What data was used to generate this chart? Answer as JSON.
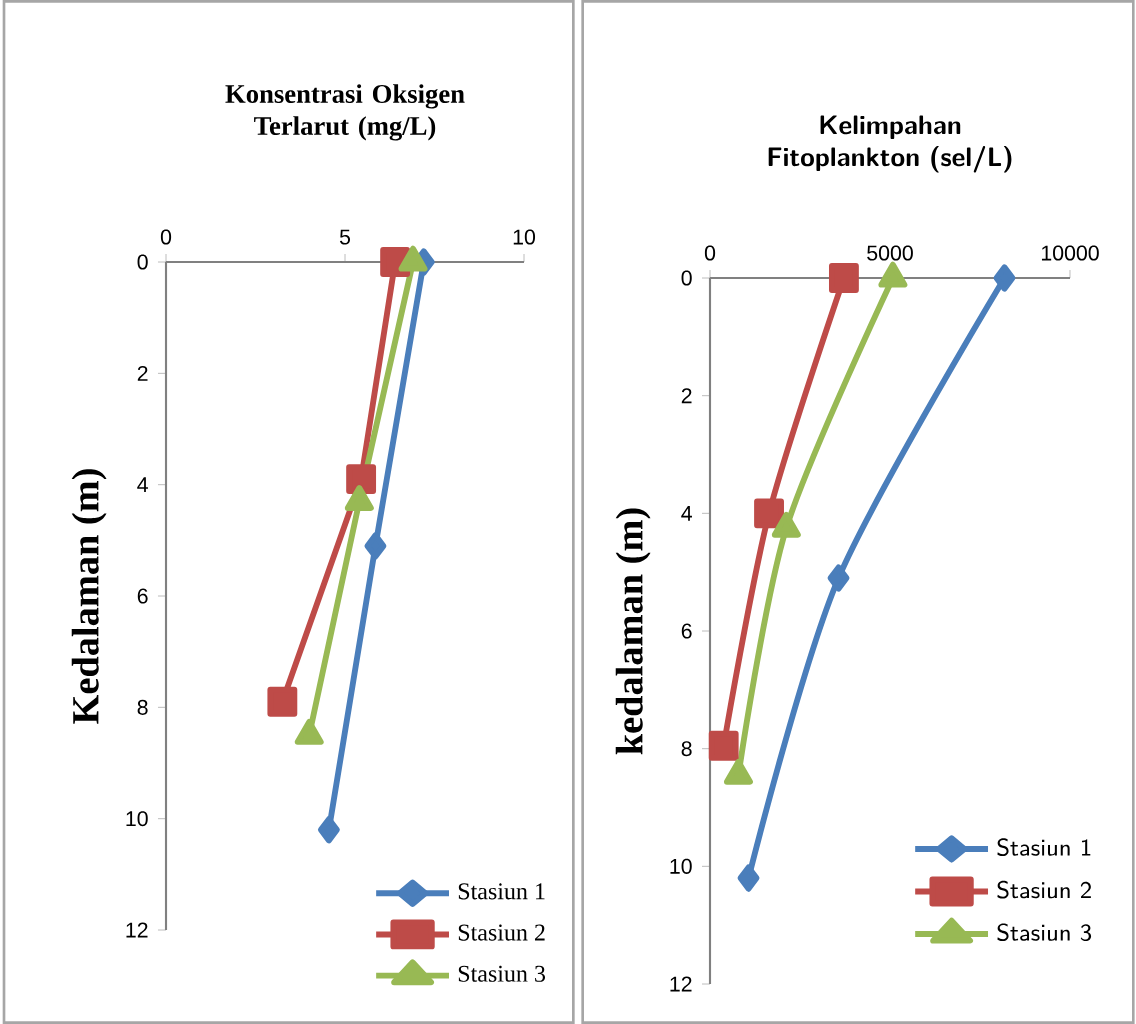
{
  "chart_data": [
    {
      "type": "line",
      "title": "Konsentrasi Oksigen Terlarut (mg/L)",
      "ylabel": "Kedalaman (m)",
      "xlim": [
        0,
        10
      ],
      "xticks": [
        0,
        5,
        10
      ],
      "ylim": [
        12,
        0
      ],
      "yticks": [
        0,
        2,
        4,
        6,
        8,
        10,
        12
      ],
      "legend": "bottom right",
      "grid": false,
      "series": [
        {
          "name": "Stasiun 1",
          "color": "#4a7ebb",
          "marker": "diamond",
          "x": [
            7.2,
            5.85,
            4.55
          ],
          "values": [
            0,
            5.1,
            10.2
          ]
        },
        {
          "name": "Stasiun 2",
          "color": "#be4b48",
          "marker": "square",
          "x": [
            6.4,
            5.45,
            3.25
          ],
          "values": [
            0,
            3.9,
            7.9
          ]
        },
        {
          "name": "Stasiun 3",
          "color": "#98b954",
          "marker": "triangle",
          "x": [
            6.9,
            5.4,
            4.0
          ],
          "values": [
            0,
            4.3,
            8.5
          ]
        }
      ]
    },
    {
      "type": "line",
      "title": "Kelimpahan Fitoplankton (sel/L)",
      "ylabel": "kedalaman (m)",
      "xlim": [
        0,
        10000
      ],
      "xticks": [
        0,
        5000,
        10000
      ],
      "ylim": [
        12,
        0
      ],
      "yticks": [
        0,
        2,
        4,
        6,
        8,
        10,
        12
      ],
      "legend": "bottom right",
      "grid": false,
      "series": [
        {
          "name": "Stasiun 1",
          "color": "#4a7ebb",
          "marker": "diamond",
          "x": [
            8180,
            3570,
            1070
          ],
          "values": [
            0,
            5.1,
            10.2
          ]
        },
        {
          "name": "Stasiun 2",
          "color": "#be4b48",
          "marker": "square",
          "x": [
            3720,
            1640,
            380
          ],
          "values": [
            0,
            4.0,
            7.95
          ]
        },
        {
          "name": "Stasiun 3",
          "color": "#98b954",
          "marker": "triangle",
          "x": [
            5080,
            2120,
            790
          ],
          "values": [
            0,
            4.25,
            8.45
          ]
        }
      ]
    }
  ]
}
